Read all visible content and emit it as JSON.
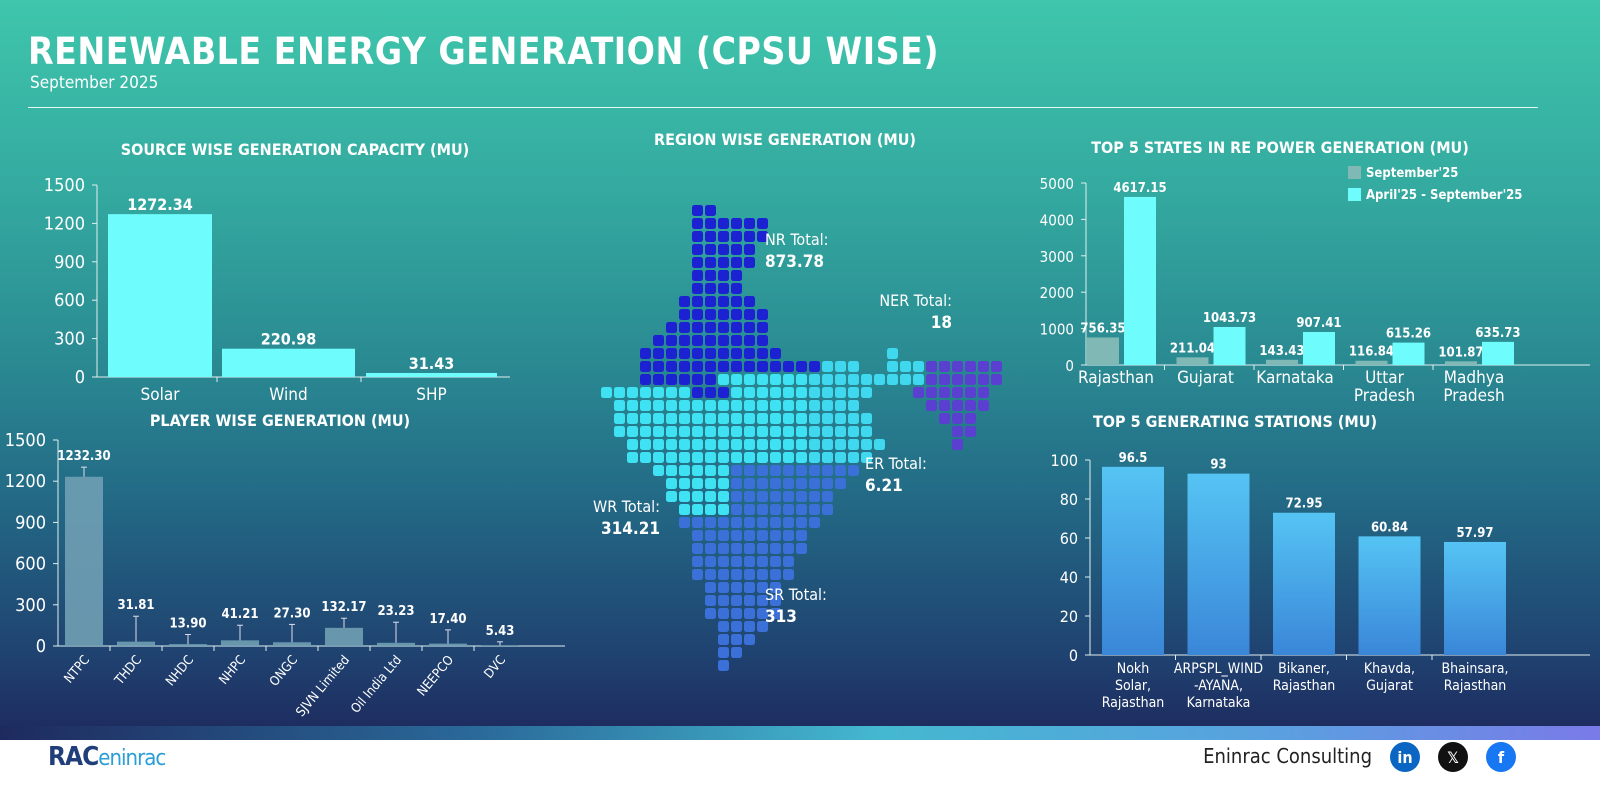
{
  "header": {
    "title": "RENEWABLE ENERGY GENERATION (CPSU WISE)",
    "subtitle": "September 2025"
  },
  "colors": {
    "cyan_bar": "#6ffcfc",
    "grey_bar": "#7fb8b4",
    "player_bar": "#6f9fb4",
    "station_bar": "#4aa8ee",
    "nr": "#1c22d2",
    "wr": "#3fe2f2",
    "er": "#3fd8ee",
    "sr": "#3a70d8",
    "ner": "#5a3fd0"
  },
  "chart_data": [
    {
      "type": "bar",
      "title": "SOURCE WISE GENERATION CAPACITY (MU)",
      "categories": [
        "Solar",
        "Wind",
        "SHP"
      ],
      "values": [
        1272.34,
        220.98,
        31.43
      ],
      "labels": [
        "1272.34",
        "220.98",
        "31.43"
      ],
      "ylim": [
        0,
        1500
      ],
      "yticks": [
        "0",
        "300",
        "600",
        "900",
        "1200",
        "1500"
      ],
      "grid": false
    },
    {
      "type": "bar",
      "title": "PLAYER WISE GENERATION (MU)",
      "categories": [
        "NTPC",
        "THDC",
        "NHDC",
        "NHPC",
        "ONGC",
        "SJVN Limited",
        "Oil India Ltd",
        "NEEPCO",
        "DVC"
      ],
      "values": [
        1232.3,
        31.81,
        13.9,
        41.21,
        27.3,
        132.17,
        23.23,
        17.4,
        5.43
      ],
      "labels": [
        "1232.30",
        "31.81",
        "13.90",
        "41.21",
        "27.30",
        "132.17",
        "23.23",
        "17.40",
        "5.43"
      ],
      "ylim": [
        0,
        1500
      ],
      "yticks": [
        "0",
        "300",
        "600",
        "900",
        "1200",
        "1500"
      ],
      "grid": false,
      "error_bars": true
    },
    {
      "type": "bar",
      "title": "TOP 5 STATES IN RE POWER GENERATION (MU)",
      "categories": [
        "Rajasthan",
        "Gujarat",
        "Karnataka",
        "Uttar Pradesh",
        "Madhya Pradesh"
      ],
      "series": [
        {
          "name": "September'25",
          "values": [
            756.35,
            211.04,
            143.43,
            116.84,
            101.87
          ],
          "labels": [
            "756.35",
            "211.04",
            "143.43",
            "116.84",
            "101.87"
          ]
        },
        {
          "name": "April'25 - September'25",
          "values": [
            4617.15,
            1043.73,
            907.41,
            615.26,
            635.73
          ],
          "labels": [
            "4617.15",
            "1043.73",
            "907.41",
            "615.26",
            "635.73"
          ]
        }
      ],
      "ylim": [
        0,
        5000
      ],
      "yticks": [
        "0",
        "1000",
        "2000",
        "3000",
        "4000",
        "5000"
      ],
      "legend": "top-right",
      "grid": false
    },
    {
      "type": "bar",
      "title": "TOP 5 GENERATING STATIONS (MU)",
      "categories": [
        "Nokh Solar, Rajasthan",
        "ARPSPL_WIND -AYANA, Karnataka",
        "Bikaner, Rajasthan",
        "Khavda, Gujarat",
        "Bhainsara, Rajasthan"
      ],
      "category_lines": [
        [
          "Nokh",
          "Solar,",
          "Rajasthan"
        ],
        [
          "ARPSPL_WIND",
          "-AYANA,",
          "Karnataka"
        ],
        [
          "Bikaner,",
          "Rajasthan"
        ],
        [
          "Khavda,",
          "Gujarat"
        ],
        [
          "Bhainsara,",
          "Rajasthan"
        ]
      ],
      "values": [
        96.5,
        93,
        72.95,
        60.84,
        57.97
      ],
      "labels": [
        "96.5",
        "93",
        "72.95",
        "60.84",
        "57.97"
      ],
      "ylim": [
        0,
        100
      ],
      "yticks": [
        "0",
        "20",
        "40",
        "60",
        "80",
        "100"
      ],
      "grid": false
    }
  ],
  "map": {
    "title": "REGION WISE GENERATION (MU)",
    "regions": [
      {
        "label": "NR Total:",
        "value": "873.78"
      },
      {
        "label": "NER Total:",
        "value": "18"
      },
      {
        "label": "ER Total:",
        "value": "6.21"
      },
      {
        "label": "WR Total:",
        "value": "314.21"
      },
      {
        "label": "SR Total:",
        "value": "313"
      }
    ]
  },
  "footer": {
    "logo": "RAC",
    "logo_sub": "eninrac",
    "brand": "Eninrac Consulting",
    "social": [
      {
        "icon": "linkedin-icon",
        "glyph": "in",
        "color": "#0a66c2"
      },
      {
        "icon": "x-icon",
        "glyph": "𝕏",
        "color": "#111111"
      },
      {
        "icon": "facebook-icon",
        "glyph": "f",
        "color": "#1877f2"
      }
    ]
  }
}
